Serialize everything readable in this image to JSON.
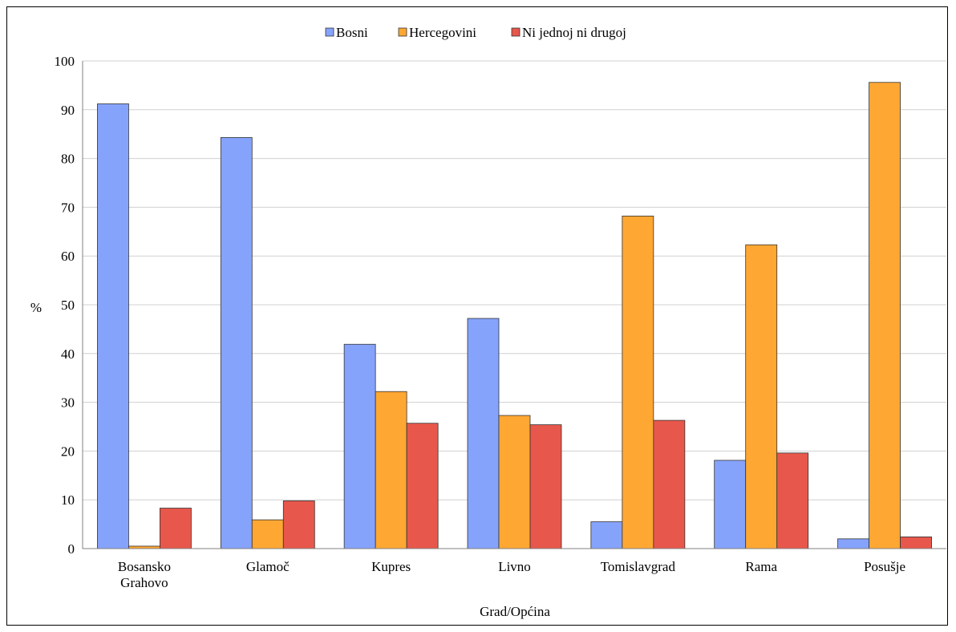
{
  "chart_data": {
    "type": "bar",
    "categories": [
      "Bosansko Grahovo",
      "Glamoč",
      "Kupres",
      "Livno",
      "Tomislavgrad",
      "Rama",
      "Posušje"
    ],
    "category_lines": [
      [
        "Bosansko",
        "Grahovo"
      ],
      [
        "Glamoč"
      ],
      [
        "Kupres"
      ],
      [
        "Livno"
      ],
      [
        "Tomislavgrad"
      ],
      [
        "Rama"
      ],
      [
        "Posušje"
      ]
    ],
    "series": [
      {
        "name": "Bosni",
        "color": "#86A3FC",
        "values": [
          91.2,
          84.3,
          41.9,
          47.2,
          5.5,
          18.1,
          2.0
        ]
      },
      {
        "name": "Hercegovini",
        "color": "#FFA733",
        "values": [
          0.5,
          5.9,
          32.2,
          27.3,
          68.2,
          62.3,
          95.6
        ]
      },
      {
        "name": "Ni jednoj ni drugoj",
        "color": "#E8574B",
        "values": [
          8.3,
          9.8,
          25.7,
          25.4,
          26.3,
          19.6,
          2.4
        ]
      }
    ],
    "xlabel": "Grad/Općina",
    "ylabel": "%",
    "ylim": [
      0,
      100
    ],
    "yticks": [
      "0",
      "10",
      "20",
      "30",
      "40",
      "50",
      "60",
      "70",
      "80",
      "90",
      "100"
    ],
    "grid": true,
    "legend_position": "top"
  }
}
